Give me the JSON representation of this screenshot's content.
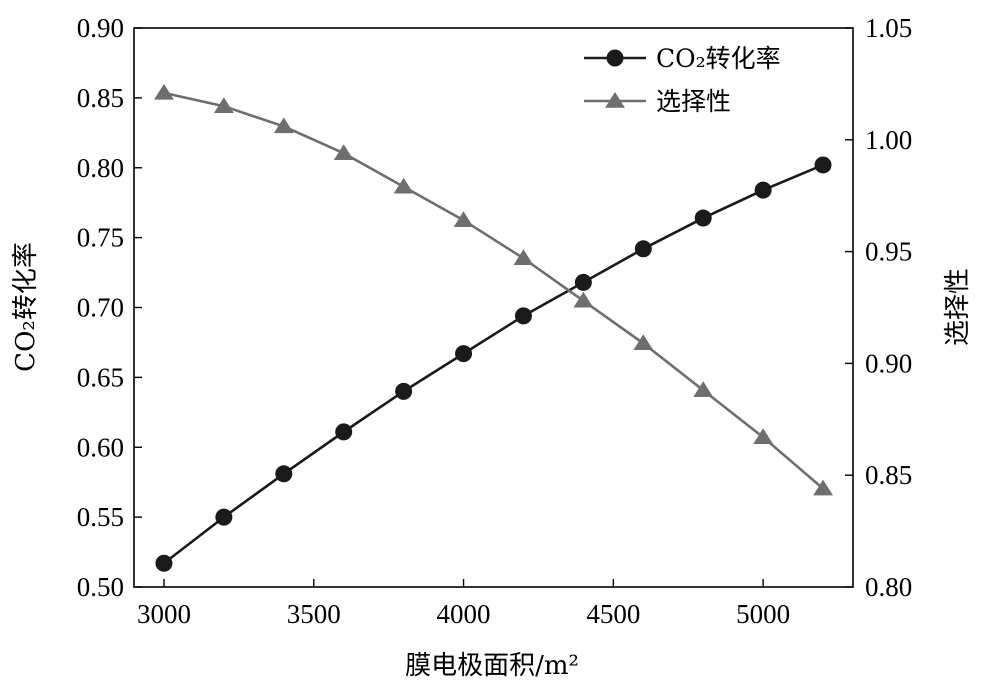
{
  "chart_data": {
    "type": "line",
    "xlabel": "膜电极面积/m²",
    "ylabel_left": "CO₂转化率",
    "ylabel_right": "选择性",
    "x": [
      3000,
      3200,
      3400,
      3600,
      3800,
      4000,
      4200,
      4400,
      4600,
      4800,
      5000,
      5200
    ],
    "xlim": [
      2900,
      5300
    ],
    "xticks": [
      "3000",
      "3500",
      "4000",
      "4500",
      "5000"
    ],
    "ylim_left": [
      0.5,
      0.9
    ],
    "yticks_left": [
      "0.50",
      "0.55",
      "0.60",
      "0.65",
      "0.70",
      "0.75",
      "0.80",
      "0.85",
      "0.90"
    ],
    "ylim_right": [
      0.8,
      1.05
    ],
    "yticks_right": [
      "0.80",
      "0.85",
      "0.90",
      "0.95",
      "1.00",
      "1.05"
    ],
    "legend_position": "top-right",
    "grid": false,
    "series": [
      {
        "name": "CO₂转化率",
        "axis": "left",
        "marker": "circle",
        "color": "#1a1a1a",
        "values": [
          0.517,
          0.55,
          0.581,
          0.611,
          0.64,
          0.667,
          0.694,
          0.718,
          0.742,
          0.764,
          0.784,
          0.802
        ]
      },
      {
        "name": "选择性",
        "axis": "right",
        "marker": "triangle",
        "color": "#6e6e6e",
        "values": [
          1.021,
          1.015,
          1.006,
          0.994,
          0.979,
          0.964,
          0.947,
          0.928,
          0.909,
          0.888,
          0.867,
          0.844
        ]
      }
    ]
  }
}
